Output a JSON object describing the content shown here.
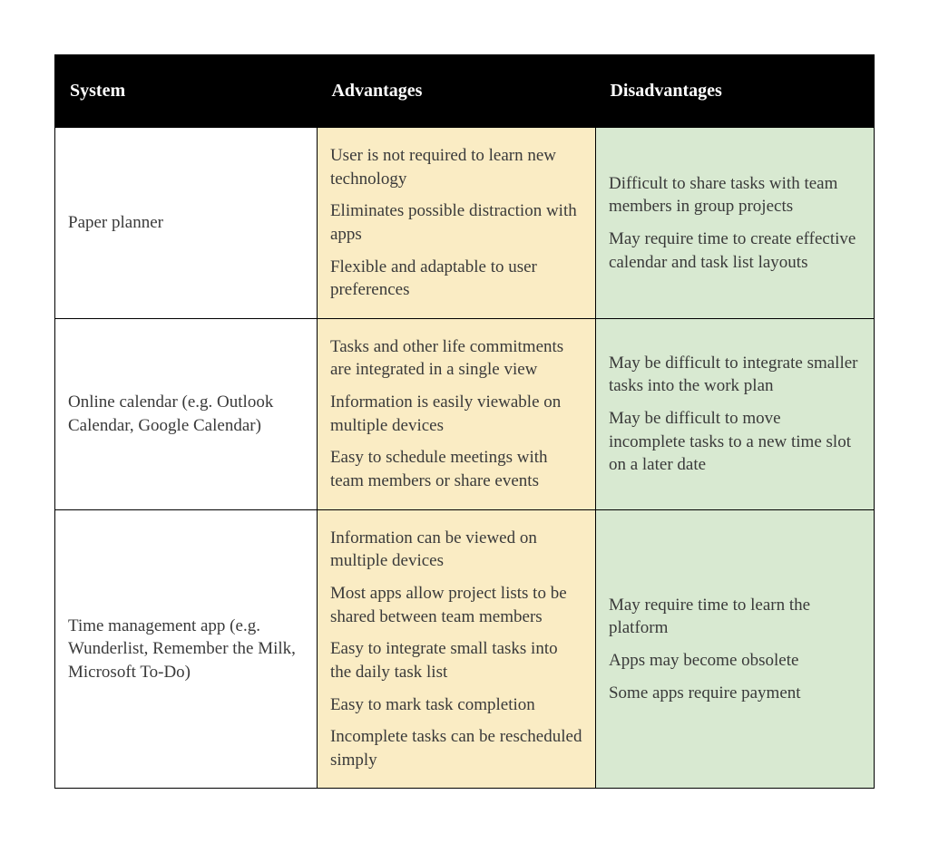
{
  "table": {
    "columns": [
      "System",
      "Advantages",
      "Disadvantages"
    ],
    "header_bg": "#000000",
    "header_color": "#ffffff",
    "header_fontsize_pt": 15,
    "body_fontsize_pt": 14,
    "body_text_color": "#3a3a3a",
    "border_color": "#000000",
    "col_widths_pct": [
      32,
      34,
      34
    ],
    "col_backgrounds": [
      "#ffffff",
      "#faecc4",
      "#d8e9d1"
    ],
    "rows": [
      {
        "system": "Paper planner",
        "advantages": [
          "User is not required to learn new technology",
          "Eliminates possible distraction with apps",
          "Flexible and adaptable to user preferences"
        ],
        "disadvantages": [
          "Difficult to share tasks with team members in group projects",
          "May require time to create effective calendar and task list layouts"
        ]
      },
      {
        "system": "Online calendar (e.g. Outlook Calendar, Google Calendar)",
        "advantages": [
          "Tasks and other life commitments are integrated in a single view",
          "Information is easily viewable on multiple devices",
          "Easy to schedule meetings with team members or share events"
        ],
        "disadvantages": [
          "May be difficult to integrate smaller tasks into the work plan",
          "May be difficult to move incomplete tasks to a new time slot on a later date"
        ]
      },
      {
        "system": "Time management app (e.g. Wunderlist, Remember the Milk, Microsoft To-Do)",
        "advantages": [
          "Information can be viewed on multiple devices",
          "Most apps allow project lists to be shared between team members",
          "Easy to integrate small tasks into the daily task list",
          "Easy to mark task completion",
          "Incomplete tasks can be rescheduled simply"
        ],
        "disadvantages": [
          "May require time to learn the platform",
          "Apps may become obsolete",
          "Some apps require payment"
        ]
      }
    ]
  }
}
